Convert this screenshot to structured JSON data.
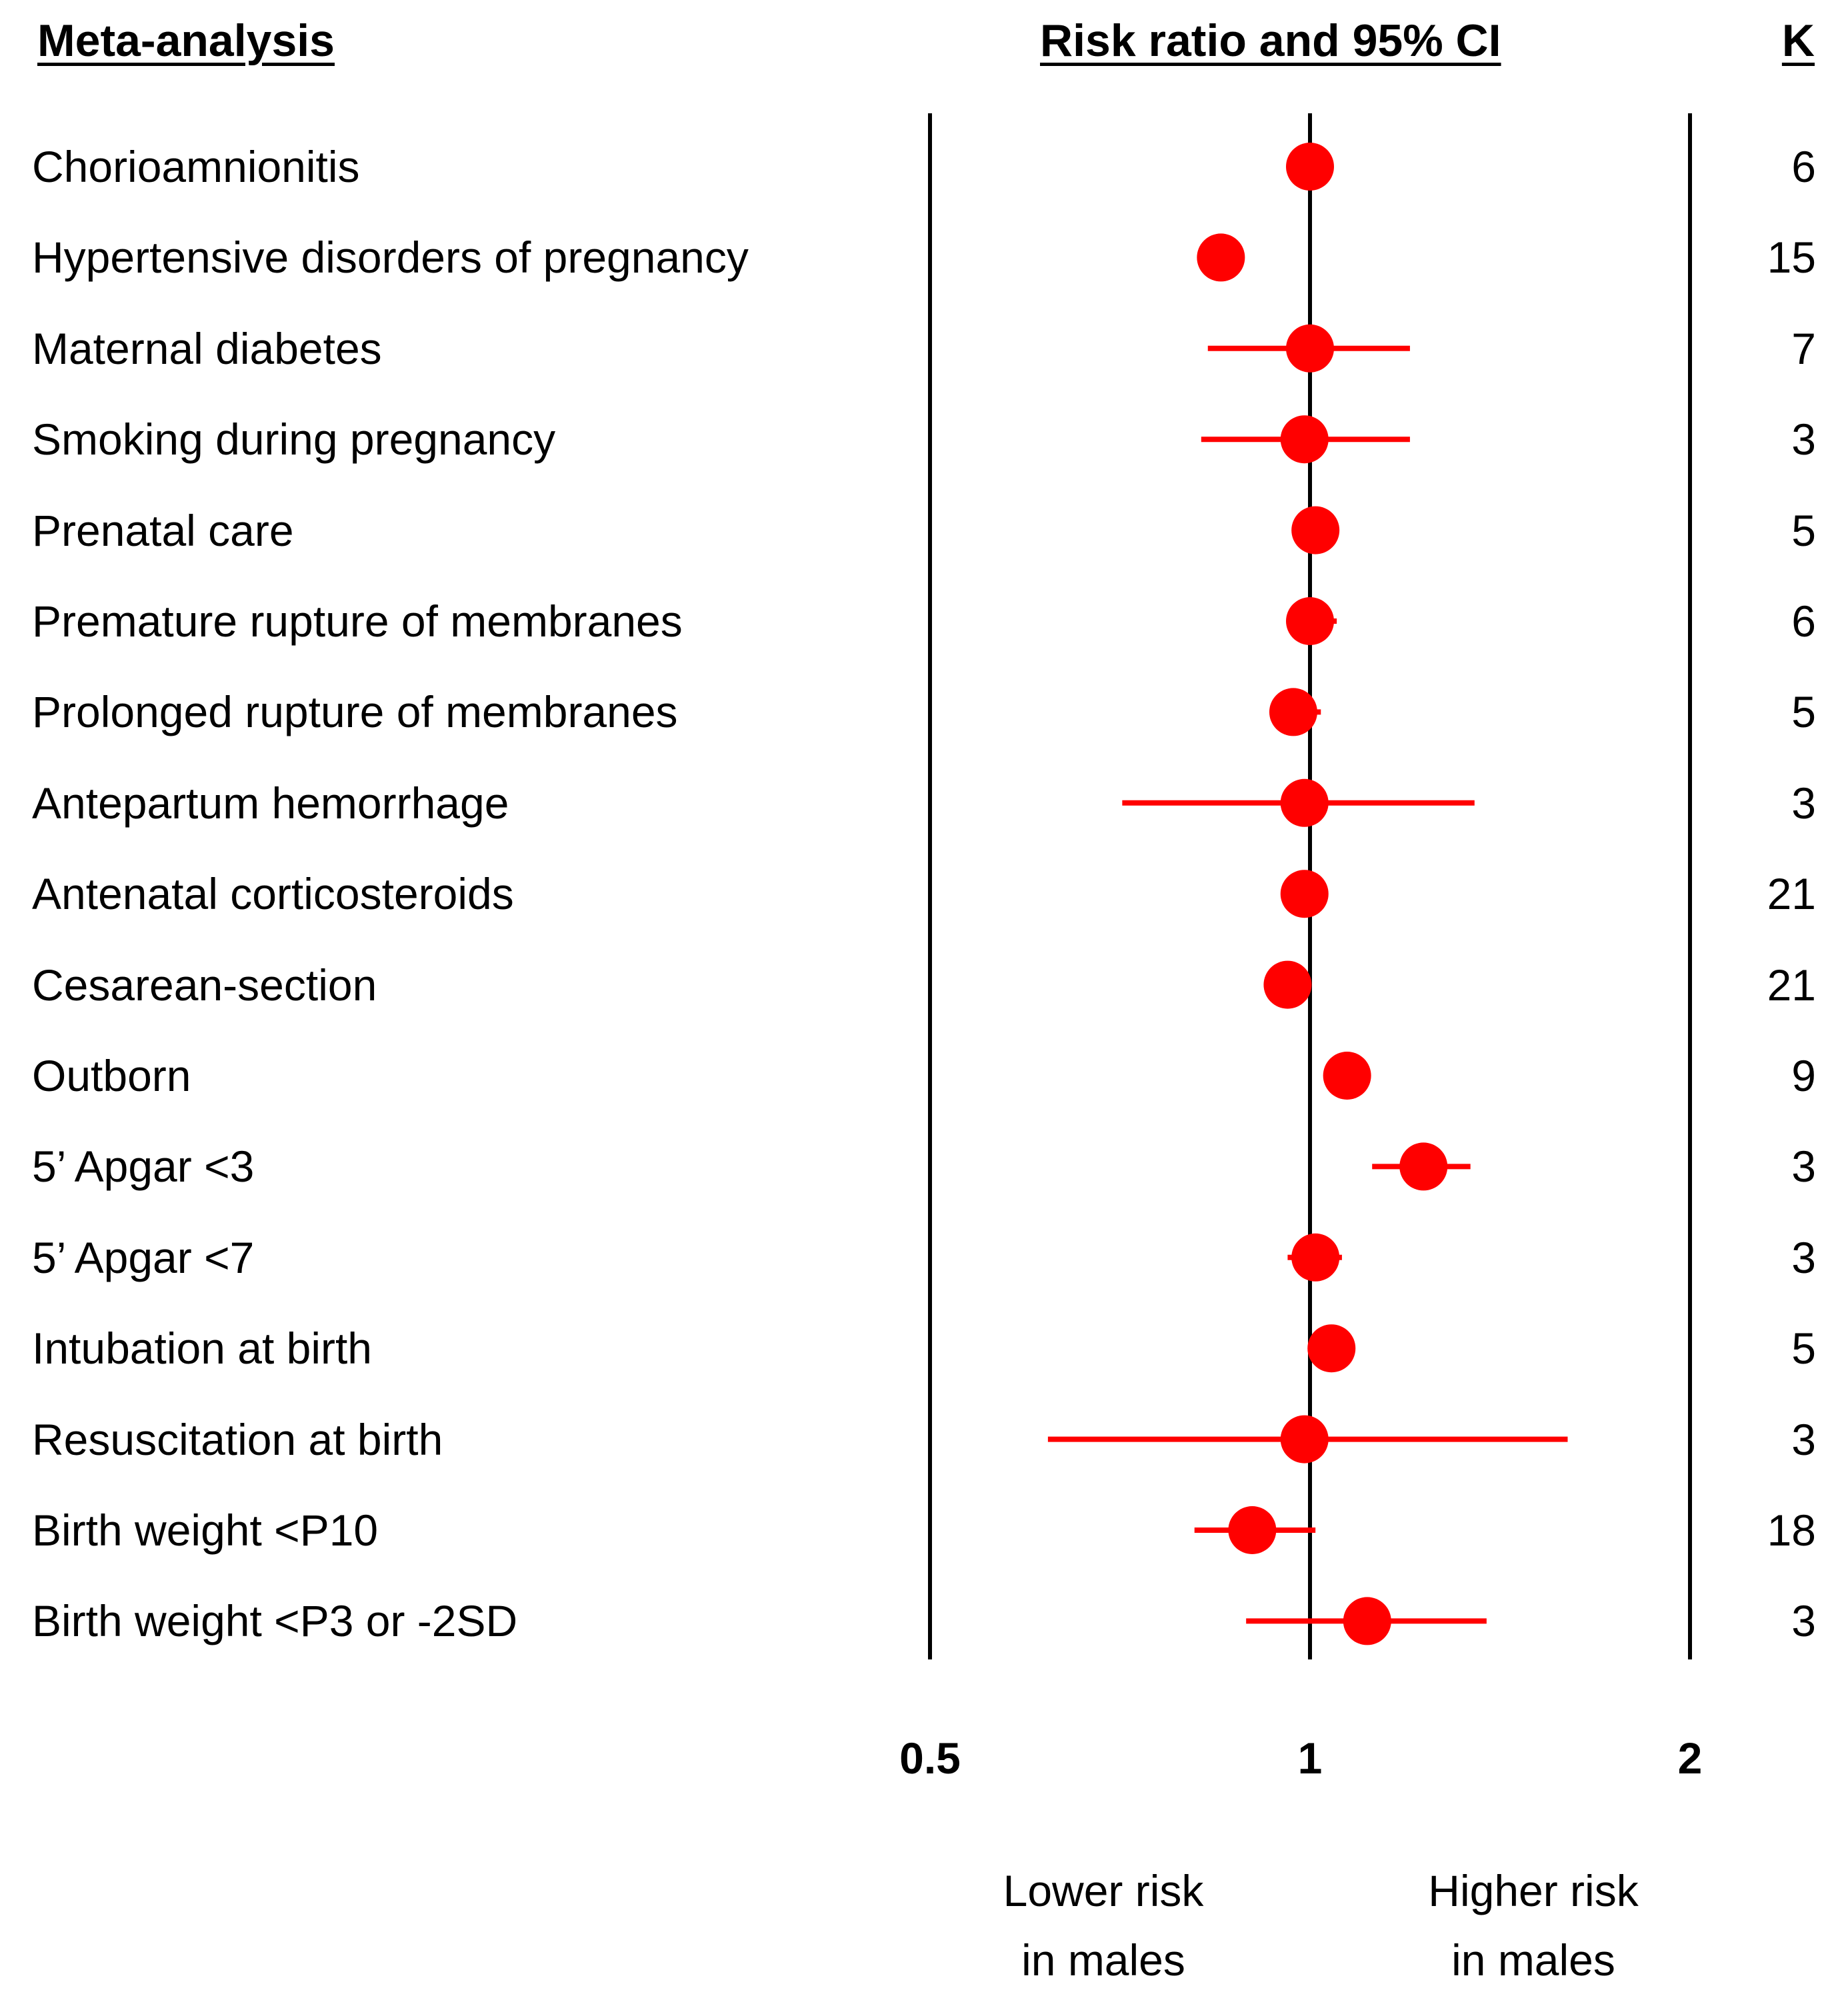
{
  "headers": {
    "analysis": "Meta-analysis",
    "effect": "Risk ratio and 95% CI",
    "k": "K"
  },
  "colors": {
    "marker": "#ff0000",
    "axis": "#000000"
  },
  "chart_data": {
    "type": "forest",
    "title": "Risk ratio and 95% CI",
    "x_scale": "log2",
    "xlim": [
      0.5,
      2
    ],
    "xticks": [
      "0.5",
      "1",
      "2"
    ],
    "reference_line": 1,
    "direction_labels": {
      "left": [
        "Lower risk",
        "in males"
      ],
      "right": [
        "Higher risk",
        "in males"
      ]
    },
    "rows": [
      {
        "label": "Chorioamnionitis",
        "rr": 1.0,
        "lo": 0.98,
        "hi": 1.03,
        "k": "6"
      },
      {
        "label": "Hypertensive disorders of pregnancy",
        "rr": 0.85,
        "lo": 0.84,
        "hi": 0.86,
        "k": "15"
      },
      {
        "label": "Maternal diabetes",
        "rr": 1.0,
        "lo": 0.83,
        "hi": 1.2,
        "k": "7"
      },
      {
        "label": "Smoking during pregnancy",
        "rr": 0.99,
        "lo": 0.82,
        "hi": 1.2,
        "k": "3"
      },
      {
        "label": "Prenatal care",
        "rr": 1.01,
        "lo": 1.0,
        "hi": 1.02,
        "k": "5"
      },
      {
        "label": "Premature rupture of membranes",
        "rr": 1.0,
        "lo": 0.96,
        "hi": 1.05,
        "k": "6"
      },
      {
        "label": "Prolonged rupture of membranes",
        "rr": 0.97,
        "lo": 0.93,
        "hi": 1.02,
        "k": "5"
      },
      {
        "label": "Antepartum hemorrhage",
        "rr": 0.99,
        "lo": 0.71,
        "hi": 1.35,
        "k": "3"
      },
      {
        "label": "Antenatal corticosteroids",
        "rr": 0.99,
        "lo": 0.98,
        "hi": 1.0,
        "k": "21"
      },
      {
        "label": "Cesarean-section",
        "rr": 0.96,
        "lo": 0.95,
        "hi": 0.97,
        "k": "21"
      },
      {
        "label": "Outborn",
        "rr": 1.07,
        "lo": 1.06,
        "hi": 1.08,
        "k": "9"
      },
      {
        "label": "5’ Apgar <3",
        "rr": 1.23,
        "lo": 1.12,
        "hi": 1.34,
        "k": "3"
      },
      {
        "label": "5’ Apgar <7",
        "rr": 1.01,
        "lo": 0.96,
        "hi": 1.06,
        "k": "3"
      },
      {
        "label": "Intubation at birth",
        "rr": 1.04,
        "lo": 1.03,
        "hi": 1.05,
        "k": "5"
      },
      {
        "label": "Resuscitation at birth",
        "rr": 0.99,
        "lo": 0.62,
        "hi": 1.6,
        "k": "3"
      },
      {
        "label": "Birth weight <P10",
        "rr": 0.9,
        "lo": 0.81,
        "hi": 1.01,
        "k": "18"
      },
      {
        "label": "Birth weight <P3  or -2SD",
        "rr": 1.11,
        "lo": 0.89,
        "hi": 1.38,
        "k": "3"
      }
    ]
  }
}
